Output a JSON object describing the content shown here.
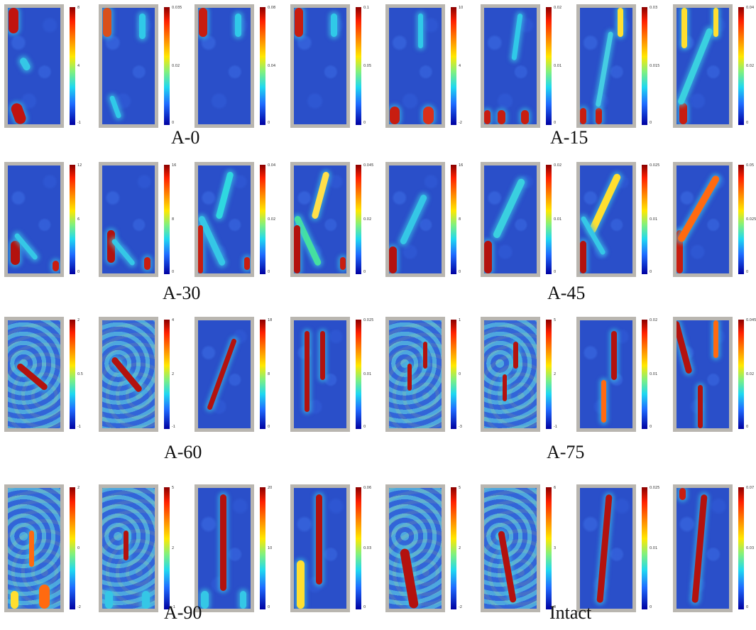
{
  "figure": {
    "rows": [
      {
        "left_label": "A-0",
        "right_label": "A-15"
      },
      {
        "left_label": "A-30",
        "right_label": "A-45"
      },
      {
        "left_label": "A-60",
        "right_label": "A-75"
      },
      {
        "left_label": "A-90",
        "right_label": "Intact"
      }
    ]
  },
  "colors": {
    "low": "#00008b",
    "mid_low": "#1f6cff",
    "mid": "#1fd8f0",
    "mid_high": "#ffe800",
    "high": "#ff2000",
    "max": "#8b0000",
    "frame": "#b9b6b0"
  },
  "panels": [
    {
      "top": "8",
      "mid": "4",
      "bot": "-1"
    },
    {
      "top": "0.035",
      "mid": "0.02",
      "bot": "0"
    },
    {
      "top": "0.08",
      "mid": "0.04",
      "bot": "0"
    },
    {
      "top": "0.1",
      "mid": "0.05",
      "bot": "0"
    },
    {
      "top": "10",
      "mid": "4",
      "bot": "-2"
    },
    {
      "top": "0.02",
      "mid": "0.01",
      "bot": "0"
    },
    {
      "top": "0.03",
      "mid": "0.015",
      "bot": "0"
    },
    {
      "top": "0.04",
      "mid": "0.02",
      "bot": "0"
    },
    {
      "top": "12",
      "mid": "6",
      "bot": "0"
    },
    {
      "top": "16",
      "mid": "8",
      "bot": "0"
    },
    {
      "top": "0.04",
      "mid": "0.02",
      "bot": "0"
    },
    {
      "top": "0.045",
      "mid": "0.02",
      "bot": "0"
    },
    {
      "top": "16",
      "mid": "8",
      "bot": "0"
    },
    {
      "top": "0.02",
      "mid": "0.01",
      "bot": "0"
    },
    {
      "top": "0.025",
      "mid": "0.01",
      "bot": "0"
    },
    {
      "top": "0.05",
      "mid": "0.025",
      "bot": "0"
    },
    {
      "top": "2",
      "mid": "0.5",
      "bot": "-1"
    },
    {
      "top": "4",
      "mid": "2",
      "bot": "-1"
    },
    {
      "top": "18",
      "mid": "8",
      "bot": "0"
    },
    {
      "top": "0.025",
      "mid": "0.01",
      "bot": "0"
    },
    {
      "top": "1",
      "mid": "0",
      "bot": "-3"
    },
    {
      "top": "5",
      "mid": "2",
      "bot": "-1"
    },
    {
      "top": "0.02",
      "mid": "0.01",
      "bot": "0"
    },
    {
      "top": "0.045",
      "mid": "0.02",
      "bot": "0"
    },
    {
      "top": "2",
      "mid": "0",
      "bot": "-2"
    },
    {
      "top": "5",
      "mid": "2",
      "bot": "-1"
    },
    {
      "top": "20",
      "mid": "10",
      "bot": "0"
    },
    {
      "top": "0.06",
      "mid": "0.03",
      "bot": "0"
    },
    {
      "top": "5",
      "mid": "2",
      "bot": "-2"
    },
    {
      "top": "6",
      "mid": "3",
      "bot": "0"
    },
    {
      "top": "0.025",
      "mid": "0.01",
      "bot": "0"
    },
    {
      "top": "0.07",
      "mid": "0.03",
      "bot": "0"
    }
  ]
}
